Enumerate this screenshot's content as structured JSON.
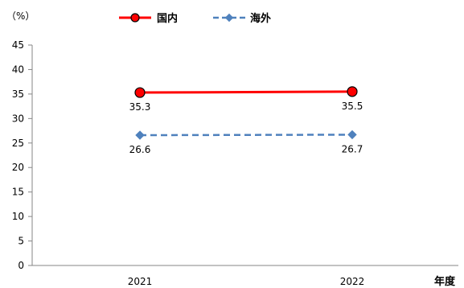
{
  "chart_data": {
    "type": "line",
    "categories": [
      "2021",
      "2022"
    ],
    "series": [
      {
        "name": "国内",
        "values": [
          35.3,
          35.5
        ],
        "color": "#ff0000",
        "marker_fill": "#ff0000",
        "marker_stroke": "#000000",
        "line_style": "solid",
        "marker": "circle"
      },
      {
        "name": "海外",
        "values": [
          26.6,
          26.7
        ],
        "color": "#4f81bd",
        "marker_fill": "#4f81bd",
        "marker_stroke": "#4f81bd",
        "line_style": "dashed",
        "marker": "diamond"
      }
    ],
    "data_labels": [
      [
        "35.3",
        "35.5"
      ],
      [
        "26.6",
        "26.7"
      ]
    ],
    "y_ticks": [
      0,
      5,
      10,
      15,
      20,
      25,
      30,
      35,
      40,
      45
    ],
    "ylim": [
      0,
      45
    ],
    "unit_label": "（%）",
    "xlabel": "年度",
    "legend_position": "top",
    "grid": false
  }
}
